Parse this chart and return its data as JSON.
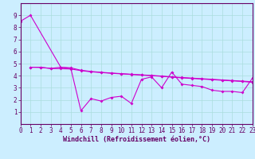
{
  "title": "",
  "xlabel": "Windchill (Refroidissement éolien,°C)",
  "bg_color": "#cceeff",
  "grid_color": "#aadddd",
  "line_color": "#cc00cc",
  "ylim": [
    0,
    10
  ],
  "xlim": [
    0,
    23
  ],
  "yticks": [
    1,
    2,
    3,
    4,
    5,
    6,
    7,
    8,
    9
  ],
  "xticks": [
    0,
    1,
    2,
    3,
    4,
    5,
    6,
    7,
    8,
    9,
    10,
    11,
    12,
    13,
    14,
    15,
    16,
    17,
    18,
    19,
    20,
    21,
    22,
    23
  ],
  "s1_x": [
    0,
    1,
    4,
    5,
    6,
    7,
    8,
    9,
    10,
    11,
    12,
    13,
    14,
    15,
    16,
    17,
    18,
    19,
    20,
    21,
    22,
    23
  ],
  "s1_y": [
    8.5,
    9.0,
    4.7,
    4.6,
    1.1,
    2.1,
    1.9,
    2.2,
    2.3,
    1.7,
    3.7,
    3.9,
    3.0,
    4.3,
    3.3,
    3.2,
    3.1,
    2.8,
    2.7,
    2.7,
    2.6,
    3.8
  ],
  "s2_x": [
    1,
    2,
    3,
    4,
    5,
    6,
    7,
    8,
    9,
    10,
    11,
    12,
    13,
    14,
    15,
    16,
    17,
    18,
    19,
    20,
    21,
    22,
    23
  ],
  "s2_y": [
    4.7,
    4.7,
    4.6,
    4.7,
    4.65,
    4.45,
    4.35,
    4.28,
    4.22,
    4.17,
    4.12,
    4.07,
    4.02,
    3.97,
    3.9,
    3.85,
    3.8,
    3.75,
    3.7,
    3.65,
    3.6,
    3.55,
    3.5
  ],
  "s3_x": [
    1,
    2,
    3,
    4,
    5,
    6,
    7,
    8,
    9,
    10,
    11,
    12,
    13,
    14,
    15,
    16,
    17,
    18,
    19,
    20,
    21,
    22,
    23
  ],
  "s3_y": [
    4.7,
    4.68,
    4.6,
    4.58,
    4.55,
    4.42,
    4.32,
    4.26,
    4.2,
    4.15,
    4.1,
    4.05,
    4.0,
    3.95,
    3.88,
    3.82,
    3.77,
    3.72,
    3.67,
    3.62,
    3.57,
    3.52,
    3.45
  ],
  "spine_color": "#660066",
  "tick_color": "#660066",
  "label_color": "#660066",
  "tick_fontsize": 5.5,
  "xlabel_fontsize": 6.0,
  "linewidth": 0.8,
  "markersize": 2.0
}
